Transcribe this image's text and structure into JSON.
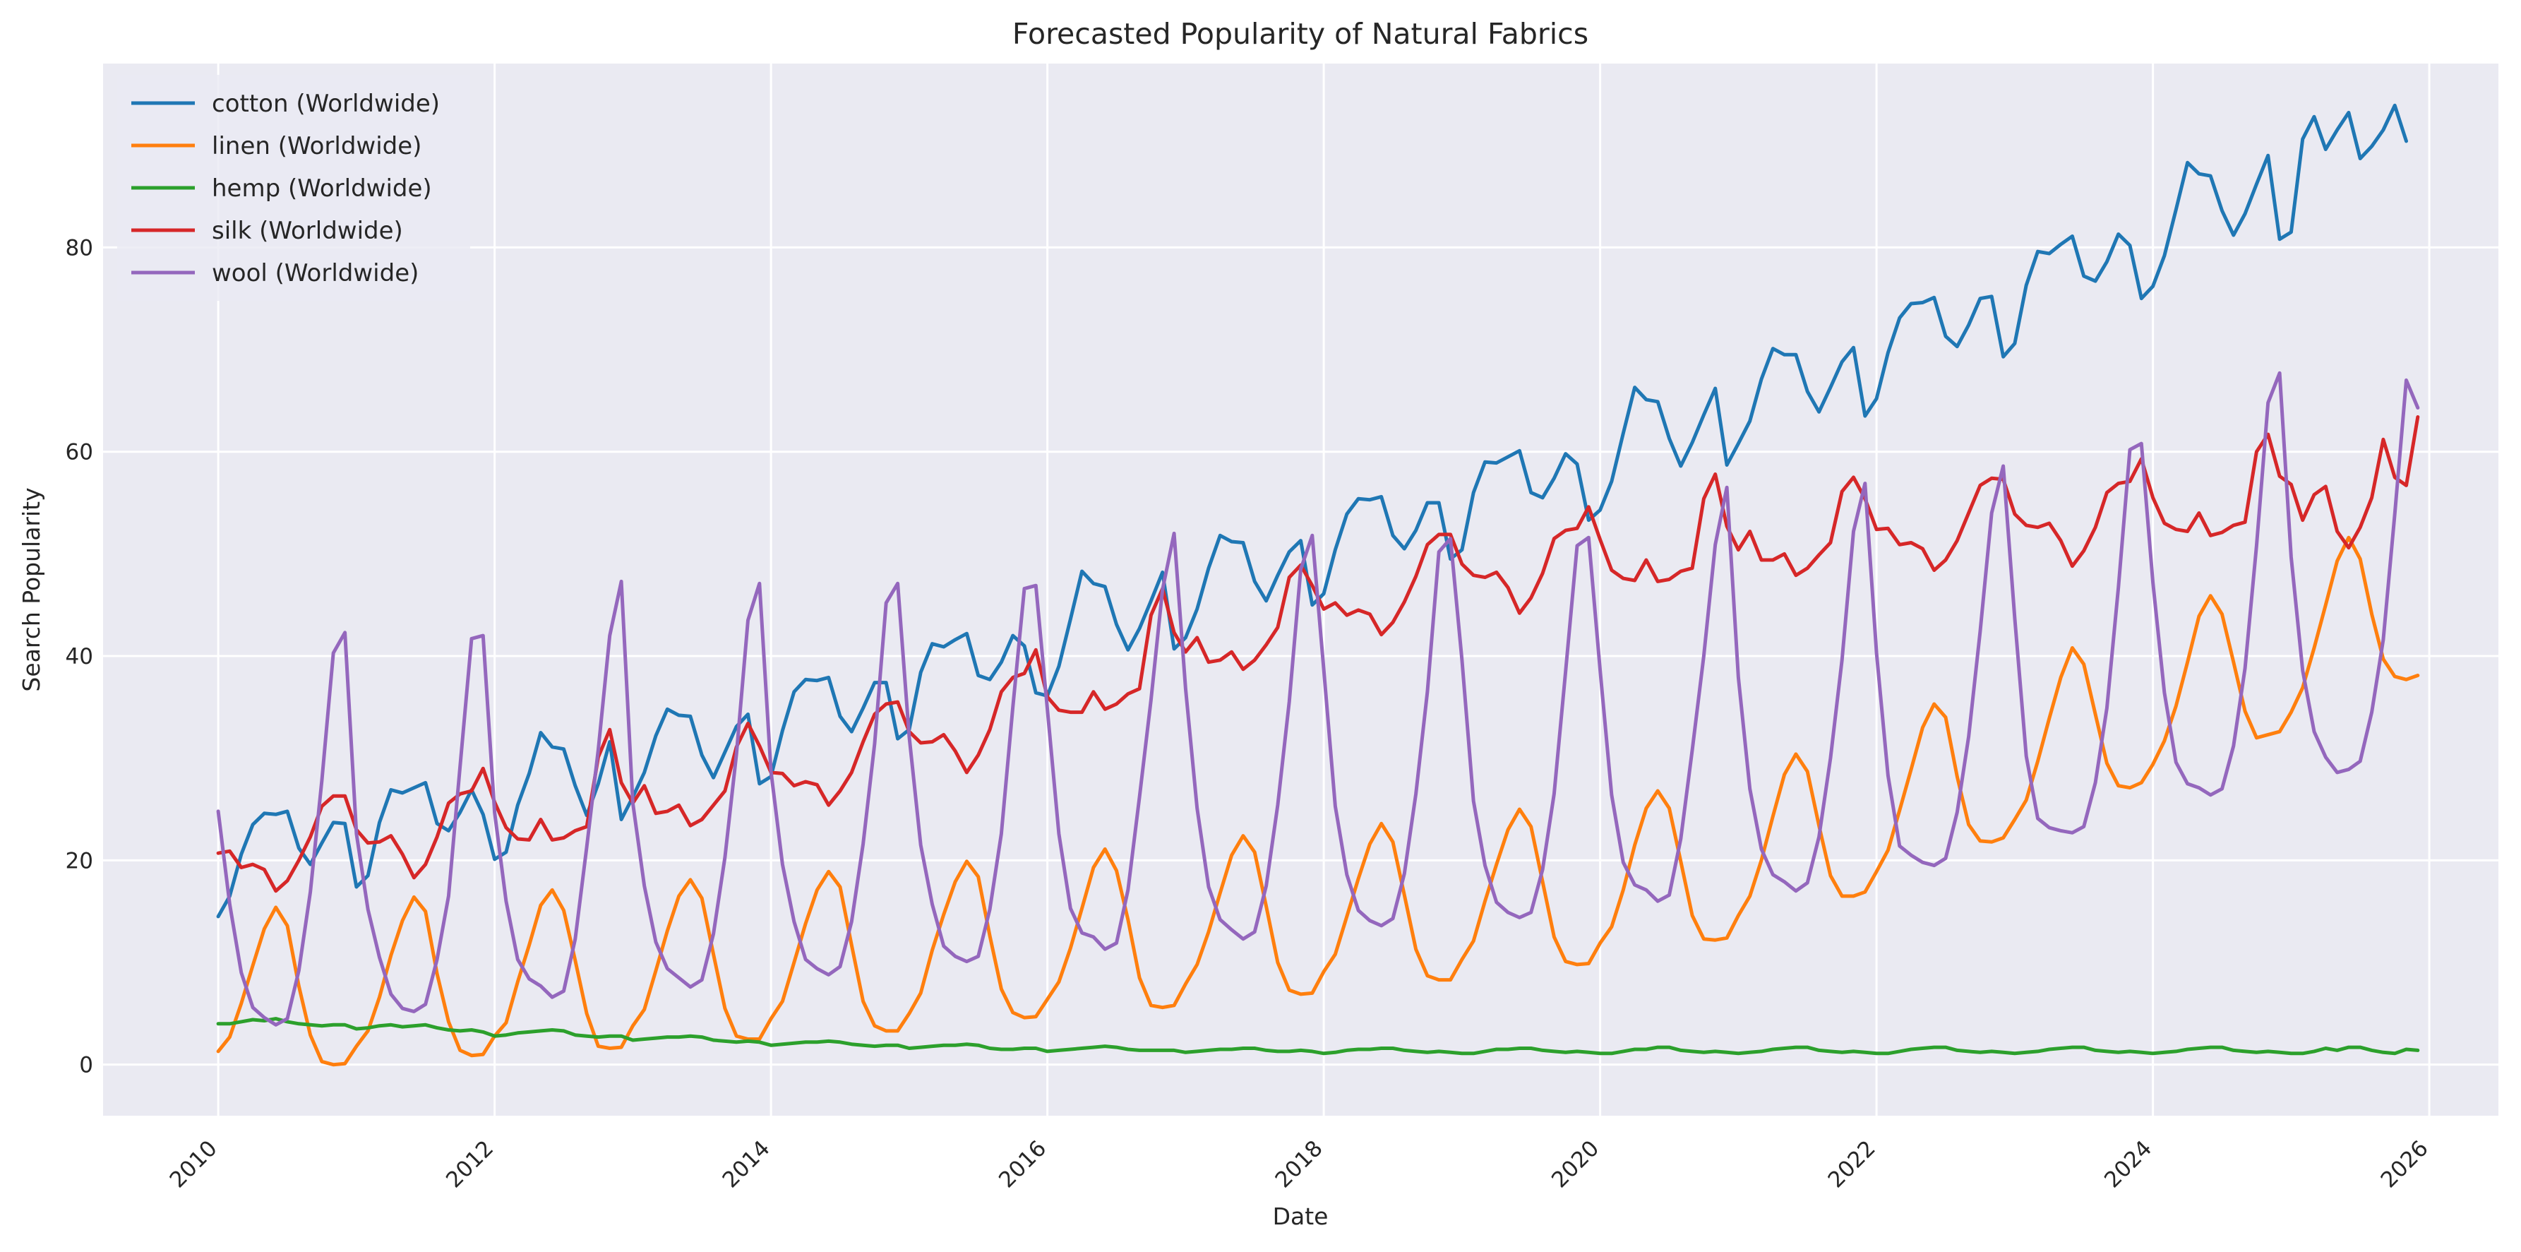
{
  "chart_data": {
    "type": "line",
    "title": "Forecasted Popularity of Natural Fabrics",
    "xlabel": "Date",
    "ylabel": "Search Popularity",
    "x_start": "2010-01",
    "x_frequency": "monthly",
    "xlim": [
      "2009-03",
      "2026-07"
    ],
    "ylim": [
      -5,
      98
    ],
    "x_ticks": [
      "2010",
      "2012",
      "2014",
      "2016",
      "2018",
      "2020",
      "2022",
      "2024",
      "2026"
    ],
    "y_ticks": [
      0,
      20,
      40,
      60,
      80
    ],
    "grid": true,
    "legend_position": "top-left",
    "series": [
      {
        "name": "cotton (Worldwide)",
        "color": "#1f77b4",
        "values": [
          14.5,
          16.5,
          20.6,
          23.5,
          24.6,
          24.5,
          24.8,
          21.2,
          19.6,
          21.7,
          23.7,
          23.6,
          17.4,
          18.5,
          23.7,
          26.9,
          26.6,
          27.1,
          27.6,
          23.6,
          22.9,
          24.7,
          26.9,
          24.5,
          20.1,
          20.8,
          25.4,
          28.5,
          32.5,
          31.1,
          30.9,
          27.3,
          24.4,
          27.5,
          31.6,
          24.0,
          26.2,
          28.6,
          32.2,
          34.8,
          34.2,
          34.1,
          30.3,
          28.1,
          30.6,
          33.1,
          34.3,
          27.5,
          28.2,
          32.7,
          36.5,
          37.7,
          37.6,
          37.9,
          34.1,
          32.6,
          34.9,
          37.4,
          37.4,
          31.9,
          32.8,
          38.4,
          41.2,
          40.9,
          41.6,
          42.2,
          38.1,
          37.7,
          39.4,
          42.0,
          41.0,
          36.4,
          36.1,
          39.0,
          43.6,
          48.3,
          47.1,
          46.8,
          43.1,
          40.6,
          42.7,
          45.4,
          48.2,
          40.7,
          41.8,
          44.6,
          48.6,
          51.8,
          51.2,
          51.1,
          47.3,
          45.4,
          47.9,
          50.2,
          51.3,
          45.0,
          46.1,
          50.4,
          53.9,
          55.4,
          55.3,
          55.6,
          51.8,
          50.5,
          52.3,
          55.0,
          55.0,
          49.5,
          50.4,
          56.0,
          59.0,
          58.9,
          59.5,
          60.1,
          56.0,
          55.5,
          57.4,
          59.8,
          58.8,
          53.3,
          54.3,
          57.1,
          61.8,
          66.3,
          65.1,
          64.9,
          61.3,
          58.6,
          60.9,
          63.6,
          66.2,
          58.7,
          60.8,
          63.0,
          67.1,
          70.1,
          69.5,
          69.5,
          65.9,
          63.9,
          66.3,
          68.8,
          70.2,
          63.5,
          65.2,
          69.7,
          73.1,
          74.5,
          74.6,
          75.1,
          71.3,
          70.3,
          72.4,
          75.0,
          75.2,
          69.3,
          70.6,
          76.3,
          79.6,
          79.4,
          80.3,
          81.1,
          77.2,
          76.7,
          78.6,
          81.3,
          80.2,
          75.0,
          76.2,
          79.2,
          83.7,
          88.3,
          87.2,
          87.0,
          83.6,
          81.2,
          83.3,
          86.2,
          89.0,
          80.8,
          81.5,
          90.6,
          92.8,
          89.6,
          91.5,
          93.2,
          88.7,
          89.9,
          91.5,
          93.9,
          90.4
        ]
      },
      {
        "name": "linen (Worldwide)",
        "color": "#ff7f0e",
        "values": [
          1.3,
          2.7,
          6.0,
          9.7,
          13.3,
          15.4,
          13.6,
          7.7,
          2.9,
          0.3,
          0.0,
          0.1,
          1.8,
          3.3,
          6.6,
          10.7,
          14.1,
          16.4,
          15.0,
          8.9,
          4.2,
          1.4,
          0.9,
          1.0,
          2.8,
          4.1,
          8.1,
          11.7,
          15.6,
          17.1,
          15.1,
          10.2,
          5.0,
          1.8,
          1.6,
          1.7,
          3.8,
          5.4,
          9.2,
          13.1,
          16.5,
          18.1,
          16.3,
          10.8,
          5.5,
          2.8,
          2.5,
          2.5,
          4.5,
          6.2,
          10.0,
          13.8,
          17.1,
          18.9,
          17.4,
          11.7,
          6.2,
          3.8,
          3.3,
          3.3,
          5.0,
          7.0,
          11.2,
          14.7,
          17.9,
          19.9,
          18.4,
          12.6,
          7.4,
          5.1,
          4.6,
          4.7,
          6.4,
          8.1,
          11.4,
          15.3,
          19.3,
          21.1,
          19.0,
          14.2,
          8.5,
          5.8,
          5.6,
          5.8,
          7.9,
          9.8,
          13.0,
          16.8,
          20.5,
          22.4,
          20.8,
          15.5,
          10.0,
          7.3,
          6.9,
          7.0,
          9.1,
          10.8,
          14.5,
          18.2,
          21.6,
          23.6,
          21.8,
          16.6,
          11.3,
          8.7,
          8.3,
          8.3,
          10.3,
          12.1,
          16.0,
          19.6,
          23.0,
          25.0,
          23.3,
          17.9,
          12.5,
          10.1,
          9.8,
          9.9,
          11.9,
          13.5,
          17.1,
          21.5,
          25.1,
          26.8,
          25.1,
          19.9,
          14.6,
          12.3,
          12.2,
          12.4,
          14.6,
          16.5,
          20.0,
          24.3,
          28.4,
          30.4,
          28.7,
          23.4,
          18.5,
          16.5,
          16.5,
          16.9,
          18.9,
          21.0,
          24.9,
          28.9,
          33.0,
          35.3,
          34.0,
          28.2,
          23.5,
          21.9,
          21.8,
          22.2,
          24.0,
          25.9,
          29.7,
          33.9,
          37.9,
          40.8,
          39.2,
          34.3,
          29.5,
          27.3,
          27.1,
          27.6,
          29.4,
          31.7,
          35.1,
          39.4,
          43.9,
          45.9,
          44.1,
          39.4,
          34.6,
          32.0,
          32.3,
          32.6,
          34.5,
          36.9,
          40.8,
          45.0,
          49.3,
          51.6,
          49.5,
          44.1,
          39.7,
          38.0,
          37.7,
          38.1
        ]
      },
      {
        "name": "hemp (Worldwide)",
        "color": "#2ca02c",
        "values": [
          4.0,
          4.0,
          4.2,
          4.4,
          4.3,
          4.5,
          4.2,
          4.0,
          3.9,
          3.8,
          3.9,
          3.9,
          3.5,
          3.6,
          3.8,
          3.9,
          3.7,
          3.8,
          3.9,
          3.6,
          3.4,
          3.3,
          3.4,
          3.2,
          2.8,
          2.9,
          3.1,
          3.2,
          3.3,
          3.4,
          3.3,
          2.9,
          2.8,
          2.7,
          2.8,
          2.8,
          2.4,
          2.5,
          2.6,
          2.7,
          2.7,
          2.8,
          2.7,
          2.4,
          2.3,
          2.2,
          2.3,
          2.2,
          1.9,
          2.0,
          2.1,
          2.2,
          2.2,
          2.3,
          2.2,
          2.0,
          1.9,
          1.8,
          1.9,
          1.9,
          1.6,
          1.7,
          1.8,
          1.9,
          1.9,
          2.0,
          1.9,
          1.6,
          1.5,
          1.5,
          1.6,
          1.6,
          1.3,
          1.4,
          1.5,
          1.6,
          1.7,
          1.8,
          1.7,
          1.5,
          1.4,
          1.4,
          1.4,
          1.4,
          1.2,
          1.3,
          1.4,
          1.5,
          1.5,
          1.6,
          1.6,
          1.4,
          1.3,
          1.3,
          1.4,
          1.3,
          1.1,
          1.2,
          1.4,
          1.5,
          1.5,
          1.6,
          1.6,
          1.4,
          1.3,
          1.2,
          1.3,
          1.2,
          1.1,
          1.1,
          1.3,
          1.5,
          1.5,
          1.6,
          1.6,
          1.4,
          1.3,
          1.2,
          1.3,
          1.2,
          1.1,
          1.1,
          1.3,
          1.5,
          1.5,
          1.7,
          1.7,
          1.4,
          1.3,
          1.2,
          1.3,
          1.2,
          1.1,
          1.2,
          1.3,
          1.5,
          1.6,
          1.7,
          1.7,
          1.4,
          1.3,
          1.2,
          1.3,
          1.2,
          1.1,
          1.1,
          1.3,
          1.5,
          1.6,
          1.7,
          1.7,
          1.4,
          1.3,
          1.2,
          1.3,
          1.2,
          1.1,
          1.2,
          1.3,
          1.5,
          1.6,
          1.7,
          1.7,
          1.4,
          1.3,
          1.2,
          1.3,
          1.2,
          1.1,
          1.2,
          1.3,
          1.5,
          1.6,
          1.7,
          1.7,
          1.4,
          1.3,
          1.2,
          1.3,
          1.2,
          1.1,
          1.1,
          1.3,
          1.6,
          1.4,
          1.7,
          1.7,
          1.4,
          1.2,
          1.1,
          1.5,
          1.4
        ]
      },
      {
        "name": "silk (Worldwide)",
        "color": "#d62728",
        "values": [
          20.7,
          20.9,
          19.3,
          19.6,
          19.1,
          17.0,
          18.0,
          20.0,
          22.3,
          25.3,
          26.3,
          26.3,
          23.0,
          21.7,
          21.8,
          22.4,
          20.6,
          18.3,
          19.6,
          22.3,
          25.6,
          26.5,
          26.8,
          29.0,
          25.7,
          23.2,
          22.1,
          22.0,
          24.0,
          22.0,
          22.2,
          22.9,
          23.3,
          30.1,
          32.8,
          27.6,
          25.6,
          27.3,
          24.6,
          24.8,
          25.4,
          23.4,
          24.0,
          25.4,
          26.8,
          31.1,
          33.4,
          31.2,
          28.6,
          28.5,
          27.3,
          27.7,
          27.4,
          25.4,
          26.8,
          28.6,
          31.6,
          34.3,
          35.3,
          35.5,
          32.6,
          31.5,
          31.6,
          32.3,
          30.7,
          28.6,
          30.3,
          32.8,
          36.5,
          37.9,
          38.3,
          40.6,
          36.0,
          34.7,
          34.5,
          34.5,
          36.5,
          34.8,
          35.3,
          36.3,
          36.8,
          44.0,
          46.6,
          42.3,
          40.4,
          41.8,
          39.4,
          39.6,
          40.4,
          38.7,
          39.6,
          41.1,
          42.8,
          47.7,
          48.9,
          46.9,
          44.6,
          45.2,
          44.0,
          44.5,
          44.1,
          42.1,
          43.3,
          45.3,
          47.8,
          50.9,
          51.9,
          51.9,
          49.0,
          47.9,
          47.7,
          48.2,
          46.7,
          44.2,
          45.7,
          48.1,
          51.5,
          52.3,
          52.5,
          54.6,
          51.4,
          48.4,
          47.6,
          47.4,
          49.4,
          47.3,
          47.5,
          48.3,
          48.6,
          55.4,
          57.8,
          52.7,
          50.4,
          52.2,
          49.4,
          49.4,
          50.0,
          47.9,
          48.6,
          49.9,
          51.1,
          56.1,
          57.5,
          55.4,
          52.4,
          52.5,
          50.9,
          51.1,
          50.5,
          48.4,
          49.4,
          51.3,
          54.0,
          56.7,
          57.4,
          57.3,
          53.9,
          52.8,
          52.6,
          53.0,
          51.3,
          48.8,
          50.3,
          52.6,
          56.0,
          56.9,
          57.1,
          59.3,
          55.5,
          53.0,
          52.4,
          52.2,
          54.0,
          51.8,
          52.1,
          52.8,
          53.1,
          60.0,
          61.7,
          57.6,
          56.8,
          53.3,
          55.8,
          56.6,
          52.2,
          50.6,
          52.6,
          55.5,
          61.2,
          57.5,
          56.7,
          63.4
        ]
      },
      {
        "name": "wool (Worldwide)",
        "color": "#9467bd",
        "values": [
          24.8,
          15.7,
          9.0,
          5.6,
          4.6,
          3.9,
          4.5,
          9.2,
          16.9,
          27.8,
          40.3,
          42.3,
          22.6,
          15.2,
          10.5,
          6.9,
          5.5,
          5.2,
          5.9,
          10.3,
          16.5,
          29.2,
          41.7,
          42.0,
          24.7,
          16.0,
          10.3,
          8.4,
          7.7,
          6.6,
          7.2,
          12.3,
          21.3,
          30.8,
          42.0,
          47.3,
          25.6,
          17.5,
          12.0,
          9.4,
          8.5,
          7.6,
          8.3,
          12.8,
          20.3,
          30.4,
          43.5,
          47.1,
          28.7,
          19.6,
          14.0,
          10.3,
          9.4,
          8.8,
          9.6,
          14.0,
          21.6,
          31.4,
          45.2,
          47.1,
          32.1,
          21.5,
          15.7,
          11.6,
          10.6,
          10.1,
          10.6,
          15.2,
          22.6,
          35.0,
          46.6,
          46.9,
          34.8,
          22.6,
          15.3,
          12.9,
          12.5,
          11.3,
          11.9,
          17.1,
          26.2,
          35.7,
          46.5,
          52.0,
          36.8,
          25.1,
          17.4,
          14.2,
          13.2,
          12.3,
          13.0,
          17.5,
          25.4,
          35.5,
          48.5,
          51.8,
          38.7,
          25.3,
          18.6,
          15.1,
          14.1,
          13.6,
          14.3,
          18.7,
          26.5,
          36.5,
          50.2,
          51.5,
          39.6,
          25.8,
          19.5,
          15.9,
          14.9,
          14.4,
          14.9,
          19.1,
          26.5,
          38.5,
          50.8,
          51.6,
          38.6,
          26.4,
          19.8,
          17.6,
          17.1,
          16.0,
          16.6,
          22.1,
          30.8,
          40.0,
          50.9,
          56.5,
          37.9,
          27.0,
          21.1,
          18.6,
          17.9,
          17.0,
          17.8,
          22.3,
          30.0,
          39.6,
          52.2,
          56.9,
          40.3,
          28.3,
          21.4,
          20.5,
          19.8,
          19.5,
          20.2,
          24.7,
          32.1,
          42.4,
          54.0,
          58.6,
          43.7,
          30.2,
          24.1,
          23.2,
          22.9,
          22.7,
          23.3,
          27.6,
          34.9,
          46.7,
          60.2,
          60.8,
          47.2,
          36.4,
          29.6,
          27.5,
          27.1,
          26.4,
          27.0,
          31.2,
          38.8,
          50.8,
          64.8,
          67.7,
          49.7,
          38.6,
          32.6,
          30.1,
          28.6,
          28.9,
          29.7,
          34.5,
          41.6,
          53.9,
          67.0,
          64.3
        ]
      }
    ]
  }
}
